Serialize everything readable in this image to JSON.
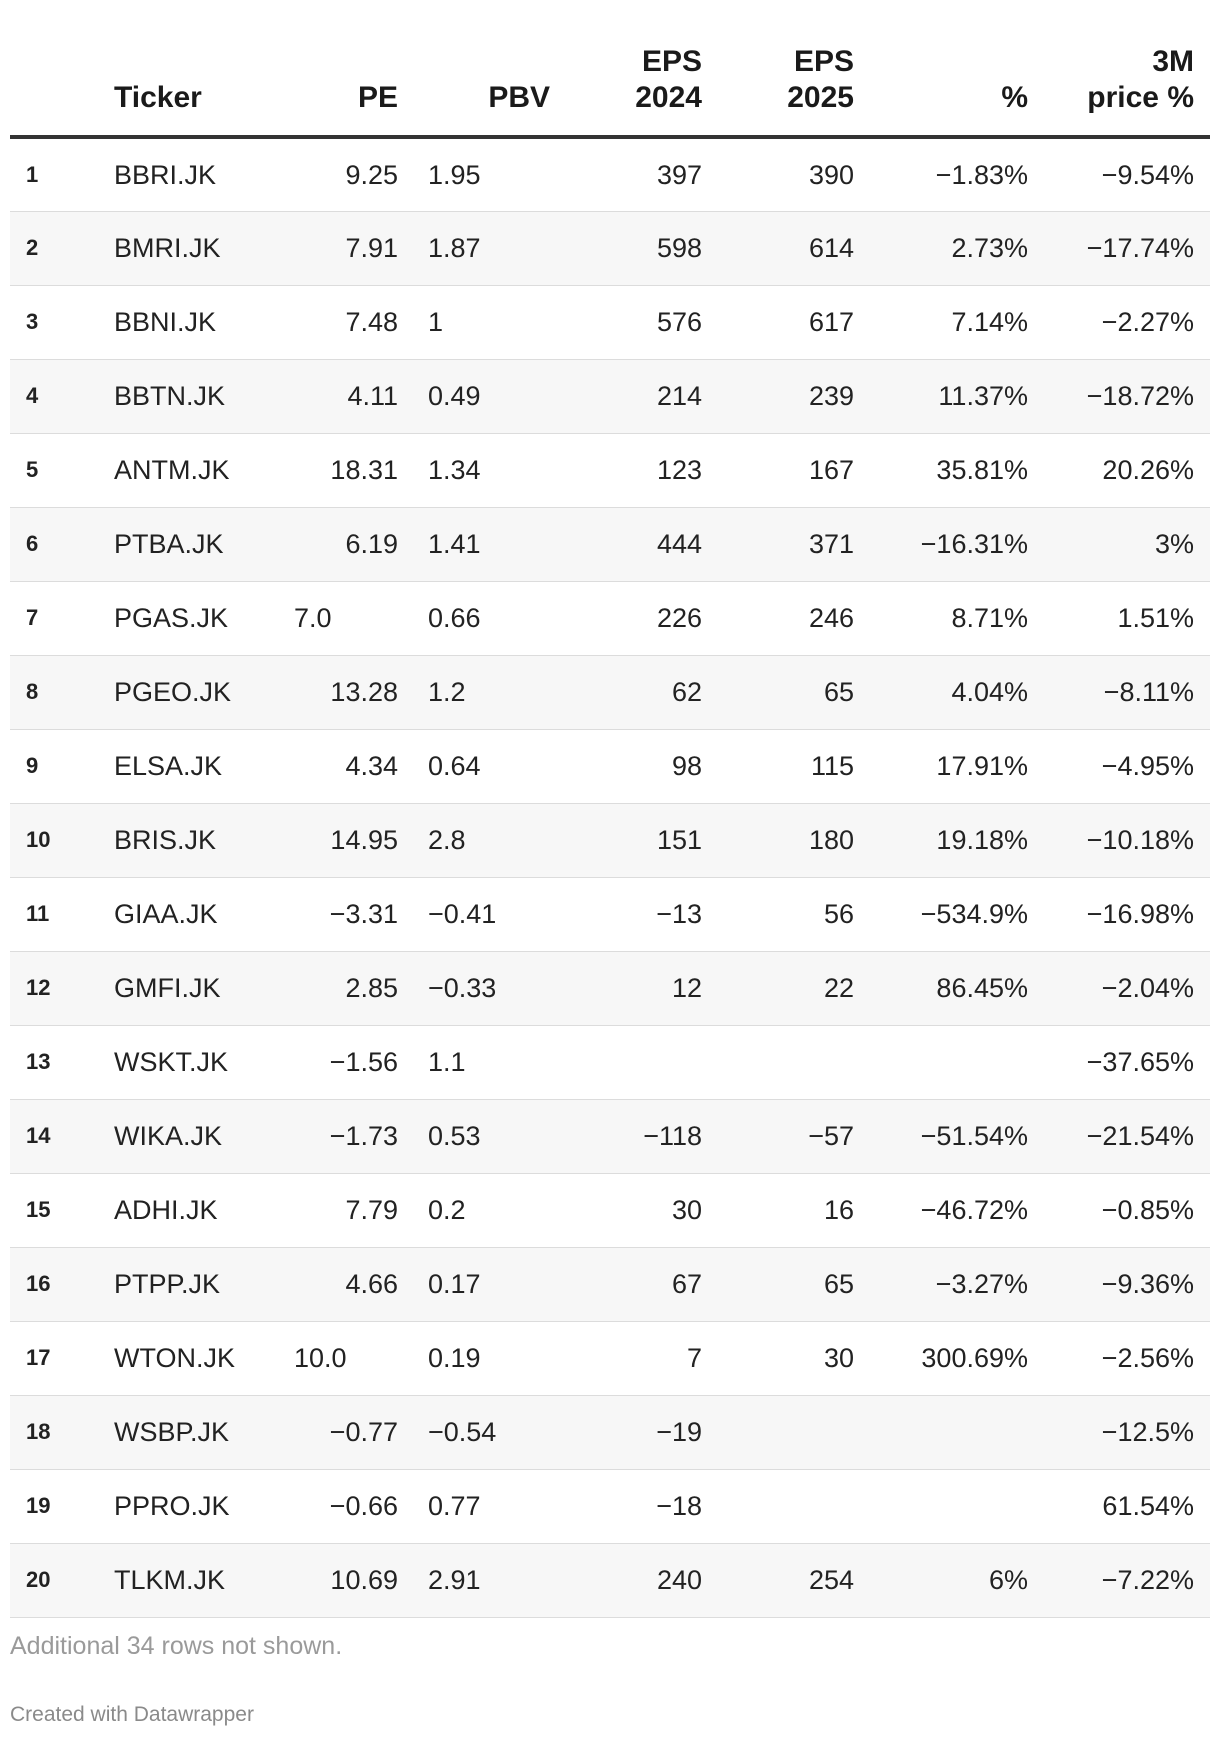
{
  "table": {
    "columns": [
      "",
      "Ticker",
      "PE",
      "PBV",
      "EPS\n2024",
      "EPS\n2025",
      "%",
      "3M\nprice %"
    ],
    "headers": {
      "rank": "",
      "ticker": "Ticker",
      "pe": "PE",
      "pbv": "PBV",
      "eps2024_line1": "EPS",
      "eps2024_line2": "2024",
      "eps2025_line1": "EPS",
      "eps2025_line2": "2025",
      "pct": "%",
      "price_line1": "3M",
      "price_line2": "price %"
    },
    "rows": [
      {
        "rank": "1",
        "ticker": "BBRI.JK",
        "pe": "9.25",
        "pbv": "1.95",
        "eps2024": "397",
        "eps2025": "390",
        "pct": "−1.83%",
        "price": "−9.54%"
      },
      {
        "rank": "2",
        "ticker": "BMRI.JK",
        "pe": "7.91",
        "pbv": "1.87",
        "eps2024": "598",
        "eps2025": "614",
        "pct": "2.73%",
        "price": "−17.74%"
      },
      {
        "rank": "3",
        "ticker": "BBNI.JK",
        "pe": "7.48",
        "pbv": "1",
        "eps2024": "576",
        "eps2025": "617",
        "pct": "7.14%",
        "price": "−2.27%"
      },
      {
        "rank": "4",
        "ticker": "BBTN.JK",
        "pe": "4.11",
        "pbv": "0.49",
        "eps2024": "214",
        "eps2025": "239",
        "pct": "11.37%",
        "price": "−18.72%"
      },
      {
        "rank": "5",
        "ticker": "ANTM.JK",
        "pe": "18.31",
        "pbv": "1.34",
        "eps2024": "123",
        "eps2025": "167",
        "pct": "35.81%",
        "price": "20.26%"
      },
      {
        "rank": "6",
        "ticker": "PTBA.JK",
        "pe": "6.19",
        "pbv": "1.41",
        "eps2024": "444",
        "eps2025": "371",
        "pct": "−16.31%",
        "price": "3%"
      },
      {
        "rank": "7",
        "ticker": "PGAS.JK",
        "pe": "7.0",
        "pbv": "0.66",
        "eps2024": "226",
        "eps2025": "246",
        "pct": "8.71%",
        "price": "1.51%"
      },
      {
        "rank": "8",
        "ticker": "PGEO.JK",
        "pe": "13.28",
        "pbv": "1.2",
        "eps2024": "62",
        "eps2025": "65",
        "pct": "4.04%",
        "price": "−8.11%"
      },
      {
        "rank": "9",
        "ticker": "ELSA.JK",
        "pe": "4.34",
        "pbv": "0.64",
        "eps2024": "98",
        "eps2025": "115",
        "pct": "17.91%",
        "price": "−4.95%"
      },
      {
        "rank": "10",
        "ticker": "BRIS.JK",
        "pe": "14.95",
        "pbv": "2.8",
        "eps2024": "151",
        "eps2025": "180",
        "pct": "19.18%",
        "price": "−10.18%"
      },
      {
        "rank": "11",
        "ticker": "GIAA.JK",
        "pe": "−3.31",
        "pbv": "−0.41",
        "eps2024": "−13",
        "eps2025": "56",
        "pct": "−534.9%",
        "price": "−16.98%"
      },
      {
        "rank": "12",
        "ticker": "GMFI.JK",
        "pe": "2.85",
        "pbv": "−0.33",
        "eps2024": "12",
        "eps2025": "22",
        "pct": "86.45%",
        "price": "−2.04%"
      },
      {
        "rank": "13",
        "ticker": "WSKT.JK",
        "pe": "−1.56",
        "pbv": "1.1",
        "eps2024": "",
        "eps2025": "",
        "pct": "",
        "price": "−37.65%"
      },
      {
        "rank": "14",
        "ticker": "WIKA.JK",
        "pe": "−1.73",
        "pbv": "0.53",
        "eps2024": "−118",
        "eps2025": "−57",
        "pct": "−51.54%",
        "price": "−21.54%"
      },
      {
        "rank": "15",
        "ticker": "ADHI.JK",
        "pe": "7.79",
        "pbv": "0.2",
        "eps2024": "30",
        "eps2025": "16",
        "pct": "−46.72%",
        "price": "−0.85%"
      },
      {
        "rank": "16",
        "ticker": "PTPP.JK",
        "pe": "4.66",
        "pbv": "0.17",
        "eps2024": "67",
        "eps2025": "65",
        "pct": "−3.27%",
        "price": "−9.36%"
      },
      {
        "rank": "17",
        "ticker": "WTON.JK",
        "pe": "10.0",
        "pbv": "0.19",
        "eps2024": "7",
        "eps2025": "30",
        "pct": "300.69%",
        "price": "−2.56%"
      },
      {
        "rank": "18",
        "ticker": "WSBP.JK",
        "pe": "−0.77",
        "pbv": "−0.54",
        "eps2024": "−19",
        "eps2025": "",
        "pct": "",
        "price": "−12.5%"
      },
      {
        "rank": "19",
        "ticker": "PPRO.JK",
        "pe": "−0.66",
        "pbv": "0.77",
        "eps2024": "−18",
        "eps2025": "",
        "pct": "",
        "price": "61.54%"
      },
      {
        "rank": "20",
        "ticker": "TLKM.JK",
        "pe": "10.69",
        "pbv": "2.91",
        "eps2024": "240",
        "eps2025": "254",
        "pct": "6%",
        "price": "−7.22%"
      }
    ]
  },
  "notes": "Additional 34 rows not shown.",
  "credit": "Created with Datawrapper",
  "colors": {
    "header_rule": "#333333",
    "row_stripe": "#f7f7f7",
    "row_divider": "#dcdcdc",
    "note_text": "#9a9a9a"
  }
}
